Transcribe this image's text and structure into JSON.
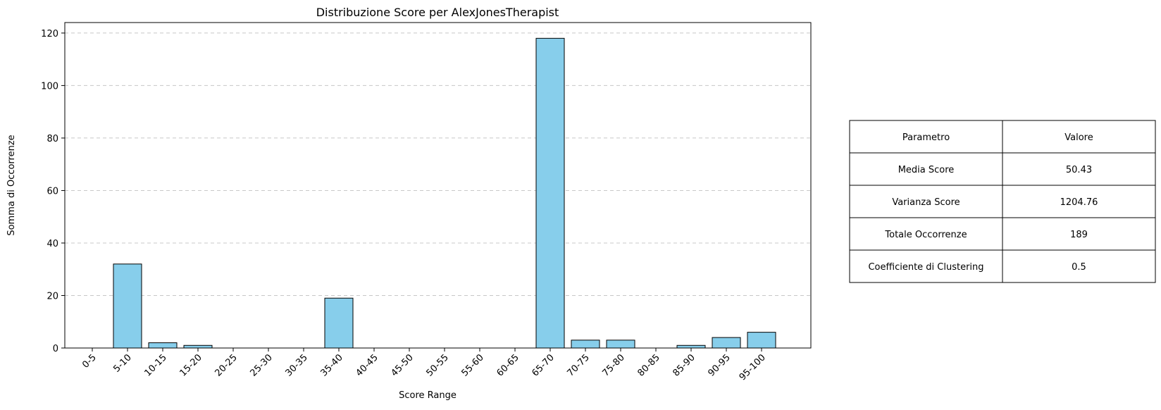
{
  "chart_data": {
    "type": "bar",
    "title": "Distribuzione Score per AlexJonesTherapist",
    "xlabel": "Score Range",
    "ylabel": "Somma di Occorrenze",
    "categories": [
      "0-5",
      "5-10",
      "10-15",
      "15-20",
      "20-25",
      "25-30",
      "30-35",
      "35-40",
      "40-45",
      "45-50",
      "50-55",
      "55-60",
      "60-65",
      "65-70",
      "70-75",
      "75-80",
      "80-85",
      "85-90",
      "90-95",
      "95-100"
    ],
    "values": [
      0,
      32,
      2,
      1,
      0,
      0,
      0,
      19,
      0,
      0,
      0,
      0,
      0,
      118,
      3,
      3,
      0,
      1,
      4,
      6
    ],
    "ylim": [
      0,
      124
    ],
    "yticks": [
      0,
      20,
      40,
      60,
      80,
      100,
      120
    ],
    "grid": "y-dashed",
    "bar_color": "#87CEEB",
    "bar_edge_color": "#000000"
  },
  "table": {
    "headers": [
      "Parametro",
      "Valore"
    ],
    "rows": [
      [
        "Media Score",
        "50.43"
      ],
      [
        "Varianza Score",
        "1204.76"
      ],
      [
        "Totale Occorrenze",
        "189"
      ],
      [
        "Coefficiente di Clustering",
        "0.5"
      ]
    ]
  }
}
